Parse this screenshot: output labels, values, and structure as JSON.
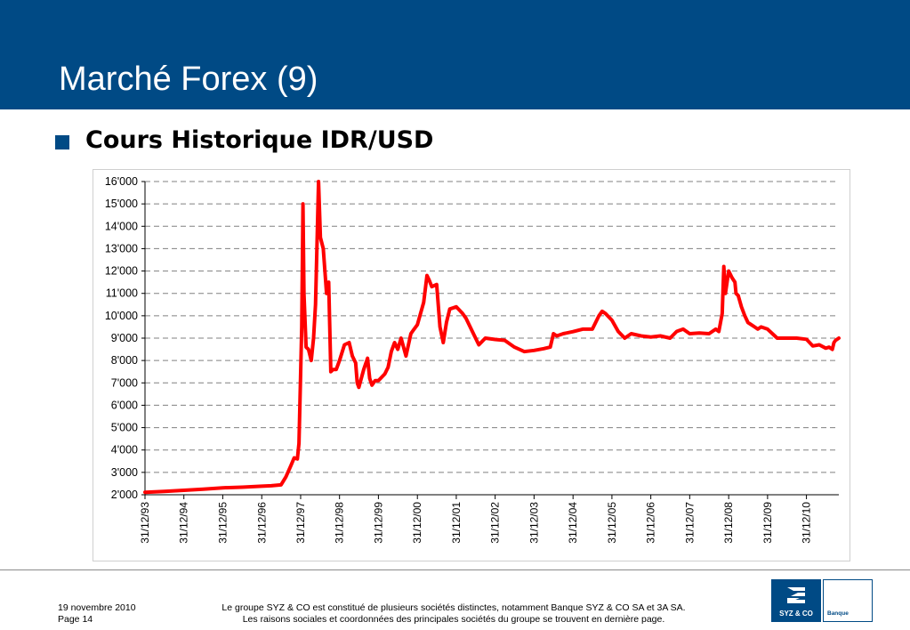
{
  "slide": {
    "title": "Marché Forex (9)",
    "section_heading": "Cours Historique IDR/USD"
  },
  "colors": {
    "header": "#004a85",
    "series": "#ff0000",
    "grid": "#808080"
  },
  "chart_data": {
    "type": "line",
    "title": "",
    "xlabel": "",
    "ylabel": "",
    "xlim": [
      "1993-12-31",
      "2011-10-31"
    ],
    "ylim": [
      2000,
      16000
    ],
    "y_ticks": [
      2000,
      3000,
      4000,
      5000,
      6000,
      7000,
      8000,
      9000,
      10000,
      11000,
      12000,
      13000,
      14000,
      15000,
      16000
    ],
    "y_tick_labels": [
      "2'000",
      "3'000",
      "4'000",
      "5'000",
      "6'000",
      "7'000",
      "8'000",
      "9'000",
      "10'000",
      "11'000",
      "12'000",
      "13'000",
      "14'000",
      "15'000",
      "16'000"
    ],
    "x_ticks": [
      "1993-12-31",
      "1994-12-31",
      "1995-12-31",
      "1996-12-31",
      "1997-12-31",
      "1998-12-31",
      "1999-12-31",
      "2000-12-31",
      "2001-12-31",
      "2002-12-31",
      "2003-12-31",
      "2004-12-31",
      "2005-12-31",
      "2006-12-31",
      "2007-12-31",
      "2008-12-31",
      "2009-12-31",
      "2010-12-31"
    ],
    "x_tick_labels": [
      "31/12/93",
      "31/12/94",
      "31/12/95",
      "31/12/96",
      "31/12/97",
      "31/12/98",
      "31/12/99",
      "31/12/00",
      "31/12/01",
      "31/12/02",
      "31/12/03",
      "31/12/04",
      "31/12/05",
      "31/12/06",
      "31/12/07",
      "31/12/08",
      "31/12/09",
      "31/12/10"
    ],
    "grid": true,
    "legend": "none",
    "series": [
      {
        "color": "#ff0000",
        "x": [
          "1993-12-31",
          "1994-06-30",
          "1994-12-31",
          "1995-06-30",
          "1995-12-31",
          "1996-06-30",
          "1996-12-31",
          "1997-03-31",
          "1997-06-30",
          "1997-08-15",
          "1997-09-30",
          "1997-10-31",
          "1997-11-30",
          "1997-12-15",
          "1998-01-10",
          "1998-01-22",
          "1998-01-31",
          "1998-02-20",
          "1998-03-15",
          "1998-04-10",
          "1998-05-01",
          "1998-05-20",
          "1998-06-17",
          "1998-07-05",
          "1998-07-31",
          "1998-08-31",
          "1998-09-20",
          "1998-10-10",
          "1998-10-31",
          "1998-11-30",
          "1998-12-31",
          "1999-02-15",
          "1999-03-31",
          "1999-04-30",
          "1999-05-31",
          "1999-06-15",
          "1999-06-30",
          "1999-08-15",
          "1999-09-20",
          "1999-10-10",
          "1999-10-31",
          "1999-11-30",
          "1999-12-31",
          "2000-02-29",
          "2000-03-31",
          "2000-04-30",
          "2000-05-31",
          "2000-06-30",
          "2000-07-31",
          "2000-09-15",
          "2000-10-31",
          "2000-11-30",
          "2000-12-31",
          "2001-02-28",
          "2001-03-31",
          "2001-04-20",
          "2001-05-15",
          "2001-06-30",
          "2001-07-31",
          "2001-08-31",
          "2001-09-30",
          "2001-10-31",
          "2001-12-31",
          "2002-02-28",
          "2002-03-31",
          "2002-05-31",
          "2002-07-31",
          "2002-09-30",
          "2002-12-31",
          "2003-03-31",
          "2003-06-30",
          "2003-09-30",
          "2003-12-31",
          "2004-03-31",
          "2004-05-31",
          "2004-06-30",
          "2004-07-31",
          "2004-09-30",
          "2004-12-31",
          "2005-03-31",
          "2005-06-30",
          "2005-08-31",
          "2005-09-30",
          "2005-10-31",
          "2005-12-31",
          "2006-02-28",
          "2006-04-30",
          "2006-06-30",
          "2006-09-30",
          "2006-12-31",
          "2007-03-31",
          "2007-06-30",
          "2007-08-31",
          "2007-10-31",
          "2007-12-31",
          "2008-03-31",
          "2008-06-30",
          "2008-08-31",
          "2008-09-30",
          "2008-10-31",
          "2008-11-15",
          "2008-11-30",
          "2008-12-31",
          "2009-01-31",
          "2009-02-28",
          "2009-03-10",
          "2009-03-31",
          "2009-04-30",
          "2009-05-31",
          "2009-06-30",
          "2009-07-31",
          "2009-08-31",
          "2009-09-30",
          "2009-10-31",
          "2009-12-31",
          "2010-03-31",
          "2010-06-30",
          "2010-09-30",
          "2010-12-31",
          "2011-02-28",
          "2011-04-30",
          "2011-06-30",
          "2011-07-31",
          "2011-08-31",
          "2011-09-15",
          "2011-09-30",
          "2011-10-31"
        ],
        "y": [
          2110,
          2150,
          2200,
          2250,
          2310,
          2340,
          2380,
          2400,
          2440,
          2800,
          3300,
          3650,
          3600,
          4300,
          9500,
          15000,
          11000,
          8600,
          8500,
          8000,
          9000,
          10500,
          16000,
          13500,
          13000,
          11000,
          11500,
          7500,
          7600,
          7600,
          8000,
          8700,
          8800,
          8200,
          7900,
          7000,
          6800,
          7600,
          8100,
          7200,
          6900,
          7100,
          7100,
          7400,
          7700,
          8400,
          8800,
          8500,
          9000,
          8200,
          9200,
          9400,
          9600,
          10600,
          11800,
          11600,
          11300,
          11400,
          9500,
          8800,
          9700,
          10300,
          10400,
          10100,
          9900,
          9300,
          8700,
          9000,
          8940,
          8900,
          8600,
          8400,
          8450,
          8530,
          8600,
          9200,
          9100,
          9200,
          9290,
          9400,
          9400,
          10000,
          10200,
          10100,
          9800,
          9300,
          9000,
          9200,
          9100,
          9050,
          9100,
          9000,
          9300,
          9400,
          9200,
          9230,
          9200,
          9400,
          9300,
          10100,
          12200,
          11000,
          12000,
          11700,
          11500,
          11000,
          10900,
          10400,
          10000,
          9700,
          9600,
          9500,
          9400,
          9500,
          9400,
          9000,
          9000,
          9000,
          8950,
          8650,
          8700,
          8550,
          8600,
          8500,
          8800,
          8900,
          9000
        ]
      }
    ]
  },
  "footer": {
    "date": "19 novembre 2010",
    "page": "Page 14",
    "disclaimer_line1": "Le groupe SYZ & CO est constitué de plusieurs sociétés distinctes, notamment Banque SYZ & CO SA et 3A SA.",
    "disclaimer_line2": "Les raisons sociales et coordonnées des principales sociétés du groupe se trouvent en dernière page.",
    "logo_text": "SYZ & CO",
    "logo_sub": "Banque"
  }
}
